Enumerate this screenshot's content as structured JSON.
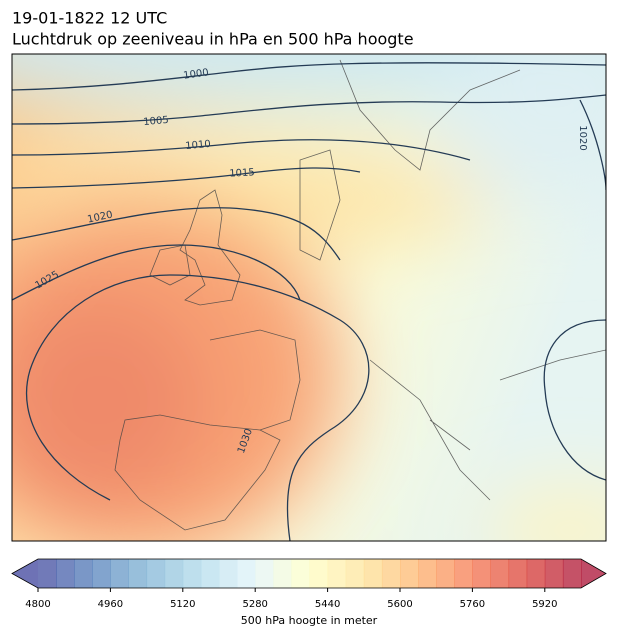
{
  "header": {
    "time": "19-01-1822 12 UTC",
    "title": "Luchtdruk op zeeniveau in hPa en 500 hPa hoogte"
  },
  "map": {
    "isobar_labels": [
      1000,
      1005,
      1010,
      1015,
      1020,
      1025,
      1030,
      1020
    ]
  },
  "colorbar": {
    "lim": [
      4800,
      6000
    ],
    "step": 40,
    "ticks": [
      4800,
      4960,
      5120,
      5280,
      5440,
      5600,
      5760,
      5920
    ],
    "label": "500 hPa hoogte in meter"
  }
}
